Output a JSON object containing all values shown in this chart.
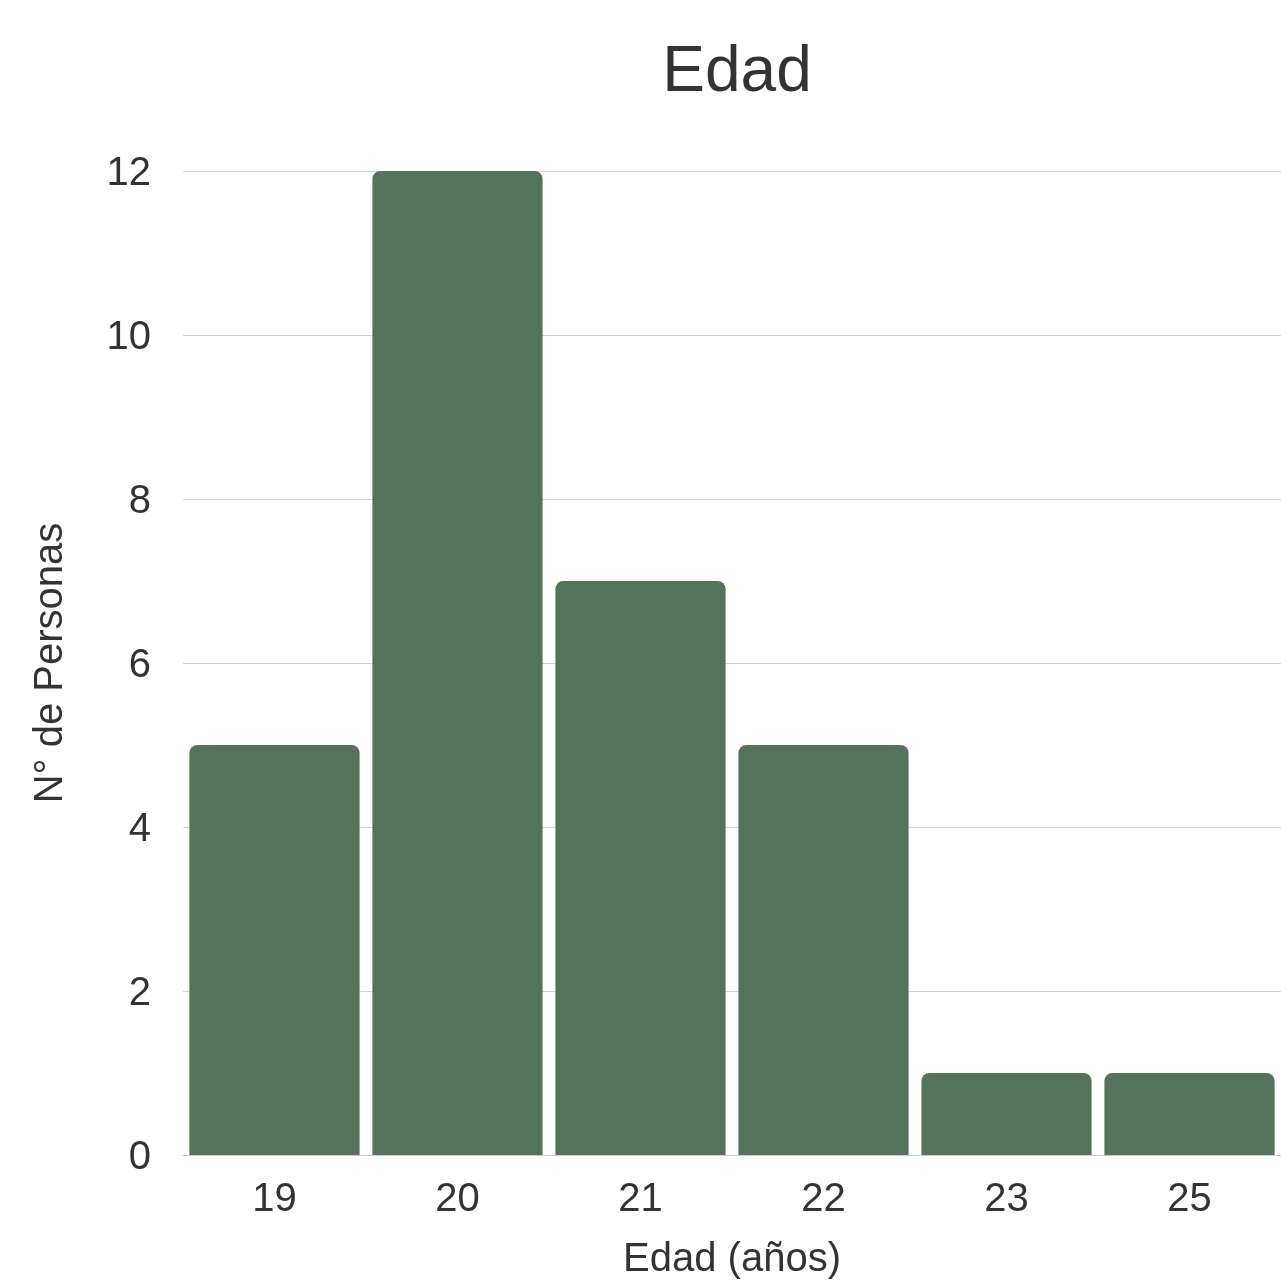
{
  "chart_data": {
    "type": "bar",
    "title": "Edad",
    "xlabel": "Edad (años)",
    "ylabel": "N° de Personas",
    "categories": [
      "19",
      "20",
      "21",
      "22",
      "23",
      "25"
    ],
    "values": [
      5,
      12,
      7,
      5,
      1,
      1
    ],
    "color": "#55735b",
    "ylim": [
      0,
      12
    ],
    "yticks": [
      0,
      2,
      4,
      6,
      8,
      10,
      12
    ],
    "grid": "y"
  }
}
